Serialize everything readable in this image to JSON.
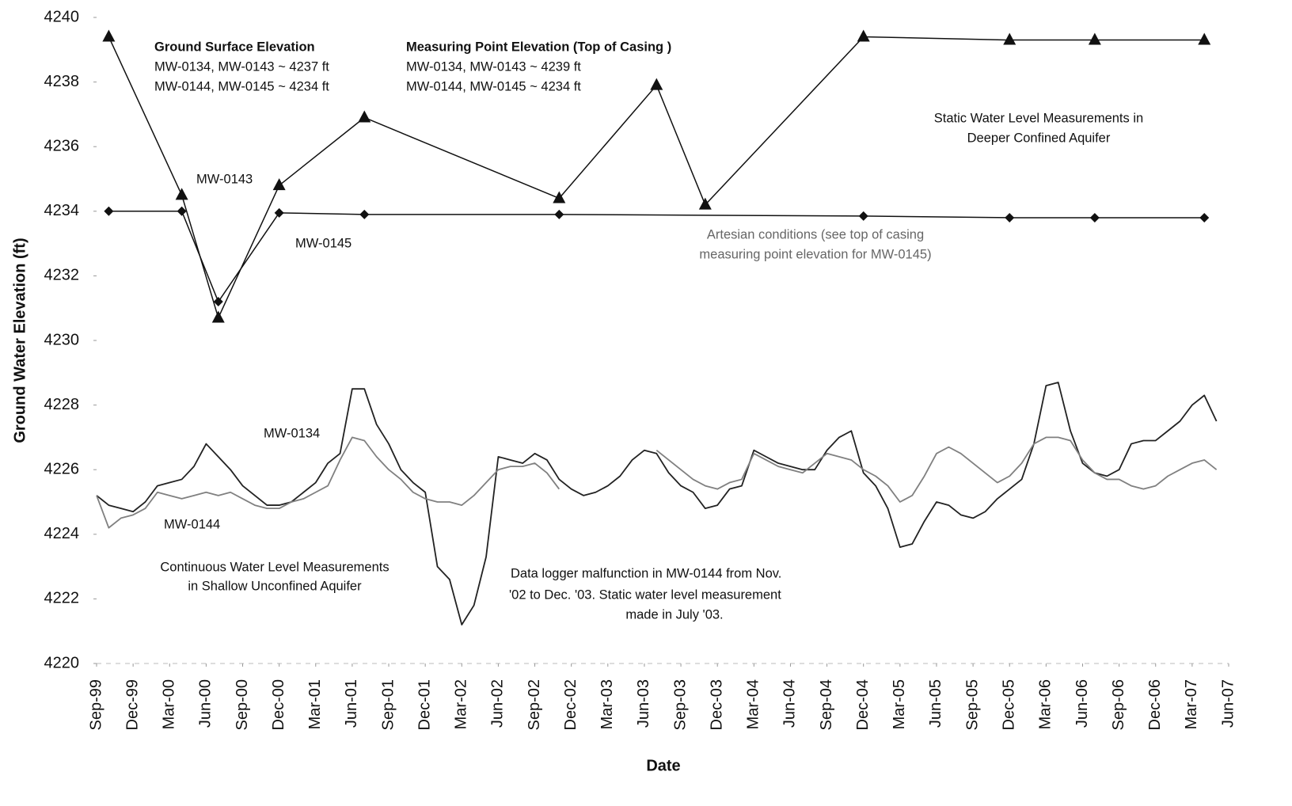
{
  "chart_data": {
    "type": "line",
    "xlabel": "Date",
    "ylabel": "Ground Water Elevation (ft)",
    "xlim": [
      "1999-09",
      "2007-06"
    ],
    "ylim": [
      4220,
      4240
    ],
    "yticks": [
      4220,
      4222,
      4224,
      4226,
      4228,
      4230,
      4232,
      4234,
      4236,
      4238,
      4240
    ],
    "grid": false,
    "xticks": [
      {
        "value": "1999-09",
        "label": "Sep-99"
      },
      {
        "value": "1999-12",
        "label": "Dec-99"
      },
      {
        "value": "2000-03",
        "label": "Mar-00"
      },
      {
        "value": "2000-06",
        "label": "Jun-00"
      },
      {
        "value": "2000-09",
        "label": "Sep-00"
      },
      {
        "value": "2000-12",
        "label": "Dec-00"
      },
      {
        "value": "2001-03",
        "label": "Mar-01"
      },
      {
        "value": "2001-06",
        "label": "Jun-01"
      },
      {
        "value": "2001-09",
        "label": "Sep-01"
      },
      {
        "value": "2001-12",
        "label": "Dec-01"
      },
      {
        "value": "2002-03",
        "label": "Mar-02"
      },
      {
        "value": "2002-06",
        "label": "Jun-02"
      },
      {
        "value": "2002-09",
        "label": "Sep-02"
      },
      {
        "value": "2002-12",
        "label": "Dec-02"
      },
      {
        "value": "2003-03",
        "label": "Mar-03"
      },
      {
        "value": "2003-06",
        "label": "Jun-03"
      },
      {
        "value": "2003-09",
        "label": "Sep-03"
      },
      {
        "value": "2003-12",
        "label": "Dec-03"
      },
      {
        "value": "2004-03",
        "label": "Mar-04"
      },
      {
        "value": "2004-06",
        "label": "Jun-04"
      },
      {
        "value": "2004-09",
        "label": "Sep-04"
      },
      {
        "value": "2004-12",
        "label": "Dec-04"
      },
      {
        "value": "2005-03",
        "label": "Mar-05"
      },
      {
        "value": "2005-06",
        "label": "Jun-05"
      },
      {
        "value": "2005-09",
        "label": "Sep-05"
      },
      {
        "value": "2005-12",
        "label": "Dec-05"
      },
      {
        "value": "2006-03",
        "label": "Mar-06"
      },
      {
        "value": "2006-06",
        "label": "Jun-06"
      },
      {
        "value": "2006-09",
        "label": "Sep-06"
      },
      {
        "value": "2006-12",
        "label": "Dec-06"
      },
      {
        "value": "2007-03",
        "label": "Mar-07"
      },
      {
        "value": "2007-06",
        "label": "Jun-07"
      }
    ],
    "x": [
      "1999-09",
      "1999-10",
      "1999-11",
      "1999-12",
      "2000-01",
      "2000-02",
      "2000-03",
      "2000-04",
      "2000-05",
      "2000-06",
      "2000-07",
      "2000-08",
      "2000-09",
      "2000-10",
      "2000-11",
      "2000-12",
      "2001-01",
      "2001-02",
      "2001-03",
      "2001-04",
      "2001-05",
      "2001-06",
      "2001-07",
      "2001-08",
      "2001-09",
      "2001-10",
      "2001-11",
      "2001-12",
      "2002-01",
      "2002-02",
      "2002-03",
      "2002-04",
      "2002-05",
      "2002-06",
      "2002-07",
      "2002-08",
      "2002-09",
      "2002-10",
      "2002-11",
      "2002-12",
      "2003-01",
      "2003-02",
      "2003-03",
      "2003-04",
      "2003-05",
      "2003-06",
      "2003-07",
      "2003-08",
      "2003-09",
      "2003-10",
      "2003-11",
      "2003-12",
      "2004-01",
      "2004-02",
      "2004-03",
      "2004-04",
      "2004-05",
      "2004-06",
      "2004-07",
      "2004-08",
      "2004-09",
      "2004-10",
      "2004-11",
      "2004-12",
      "2005-01",
      "2005-02",
      "2005-03",
      "2005-04",
      "2005-05",
      "2005-06",
      "2005-07",
      "2005-08",
      "2005-09",
      "2005-10",
      "2005-11",
      "2005-12",
      "2006-01",
      "2006-02",
      "2006-03",
      "2006-04",
      "2006-05",
      "2006-06",
      "2006-07",
      "2006-08",
      "2006-09",
      "2006-10",
      "2006-11",
      "2006-12",
      "2007-01",
      "2007-02",
      "2007-03",
      "2007-04",
      "2007-05"
    ],
    "series": [
      {
        "name": "MW-0143",
        "color": "#111111",
        "marker": "triangle",
        "x": [
          "1999-10",
          "2000-04",
          "2000-07",
          "2000-12",
          "2001-07",
          "2002-11",
          "2003-07",
          "2003-11",
          "2004-12",
          "2005-12",
          "2006-07",
          "2007-04"
        ],
        "values": [
          4239.4,
          4234.5,
          4230.7,
          4234.8,
          4236.9,
          4234.4,
          4237.9,
          4234.2,
          4239.4,
          4239.3,
          4239.3,
          4239.3
        ]
      },
      {
        "name": "MW-0145",
        "color": "#111111",
        "marker": "diamond",
        "x": [
          "1999-10",
          "2000-04",
          "2000-07",
          "2000-12",
          "2001-07",
          "2002-11",
          "2004-12",
          "2005-12",
          "2006-07",
          "2007-04"
        ],
        "values": [
          4234.0,
          4234.0,
          4231.2,
          4233.95,
          4233.9,
          4233.9,
          4233.85,
          4233.8,
          4233.8,
          4233.8
        ]
      },
      {
        "name": "MW-0134",
        "color": "#222222",
        "values": [
          4225.2,
          4224.9,
          4224.8,
          4224.7,
          4225.0,
          4225.5,
          4225.6,
          4225.7,
          4226.1,
          4226.8,
          4226.4,
          4226.0,
          4225.5,
          4225.2,
          4224.9,
          4224.9,
          4225.0,
          4225.3,
          4225.6,
          4226.2,
          4226.5,
          4228.5,
          4228.5,
          4227.4,
          4226.8,
          4226.0,
          4225.6,
          4225.3,
          4223.0,
          4222.6,
          4221.2,
          4221.8,
          4223.3,
          4226.4,
          4226.3,
          4226.2,
          4226.5,
          4226.3,
          4225.7,
          4225.4,
          4225.2,
          4225.3,
          4225.5,
          4225.8,
          4226.3,
          4226.6,
          4226.5,
          4225.9,
          4225.5,
          4225.3,
          4224.8,
          4224.9,
          4225.4,
          4225.5,
          4226.6,
          4226.4,
          4226.2,
          4226.1,
          4226.0,
          4226.0,
          4226.6,
          4227.0,
          4227.2,
          4225.9,
          4225.5,
          4224.8,
          4223.6,
          4223.7,
          4224.4,
          4225.0,
          4224.9,
          4224.6,
          4224.5,
          4224.7,
          4225.1,
          4225.4,
          4225.7,
          4226.8,
          4228.6,
          4228.7,
          4227.2,
          4226.2,
          4225.9,
          4225.8,
          4226.0,
          4226.8,
          4226.9,
          4226.9,
          4227.2,
          4227.5,
          4228.0,
          4228.3,
          4227.5
        ]
      },
      {
        "name": "MW-0144",
        "color": "#808080",
        "values": [
          4225.2,
          4224.2,
          4224.5,
          4224.6,
          4224.8,
          4225.3,
          4225.2,
          4225.1,
          4225.2,
          4225.3,
          4225.2,
          4225.3,
          4225.1,
          4224.9,
          4224.8,
          4224.8,
          4225.0,
          4225.1,
          4225.3,
          4225.5,
          4226.3,
          4227.0,
          4226.9,
          4226.4,
          4226.0,
          4225.7,
          4225.3,
          4225.1,
          4225.0,
          4225.0,
          4224.9,
          4225.2,
          4225.6,
          4226.0,
          4226.1,
          4226.1,
          4226.2,
          4225.9,
          4225.4,
          null,
          null,
          null,
          null,
          null,
          null,
          null,
          4226.6,
          4226.3,
          4226.0,
          4225.7,
          4225.5,
          4225.4,
          4225.6,
          4225.7,
          4226.5,
          4226.3,
          4226.1,
          4226.0,
          4225.9,
          4226.2,
          4226.5,
          4226.4,
          4226.3,
          4226.0,
          4225.8,
          4225.5,
          4225.0,
          4225.2,
          4225.8,
          4226.5,
          4226.7,
          4226.5,
          4226.2,
          4225.9,
          4225.6,
          4225.8,
          4226.2,
          4226.8,
          4227.0,
          4227.0,
          4226.9,
          4226.3,
          4225.9,
          4225.7,
          4225.7,
          4225.5,
          4225.4,
          4225.5,
          4225.8,
          4226.0,
          4226.2,
          4226.3,
          4226.0
        ]
      }
    ],
    "annotations": [
      "Ground Surface Elevation",
      "MW-0134, MW-0143 ~ 4237 ft",
      "MW-0144, MW-0145 ~ 4234 ft",
      "Measuring Point Elevation (Top of Casing )",
      "MW-0134, MW-0143 ~ 4239 ft",
      "MW-0144, MW-0145 ~ 4234 ft",
      "Static Water Level Measurements in",
      "Deeper Confined Aquifer",
      "Artesian conditions (see top of casing",
      "measuring point elevation for MW-0145)",
      "Continuous Water Level Measurements",
      "in Shallow Unconfined Aquifer",
      "Data logger malfunction in MW-0144 from Nov.",
      "'02 to Dec. '03.  Static water level measurement",
      "made in July '03."
    ]
  }
}
